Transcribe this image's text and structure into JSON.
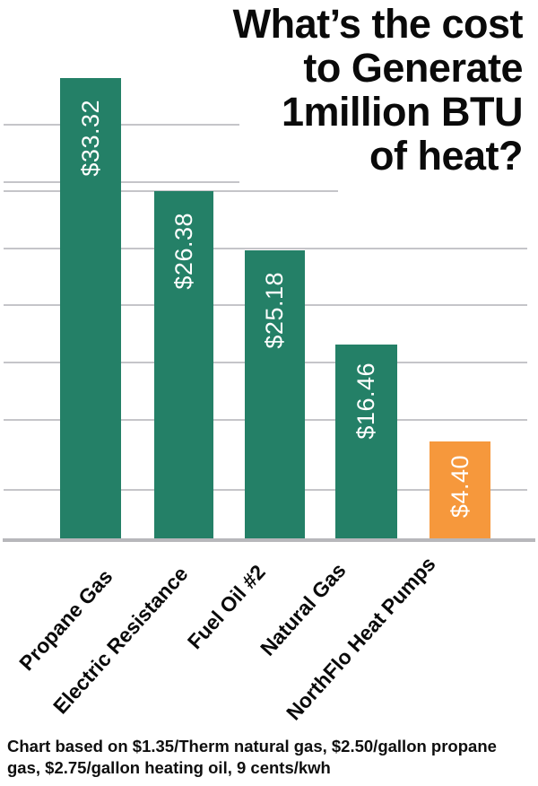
{
  "title": {
    "lines": [
      "What’s the cost",
      "to Generate",
      "1million BTU",
      "of heat?"
    ]
  },
  "chart_data": {
    "type": "bar",
    "title": "What’s the cost to Generate 1million BTU of heat?",
    "categories": [
      "Propane Gas",
      "Electric Resistance",
      "Fuel Oil #2",
      "Natural Gas",
      "NorthFlo Heat Pumps"
    ],
    "values": [
      33.32,
      26.38,
      25.18,
      16.46,
      4.4
    ],
    "value_labels": [
      "$33.32",
      "$26.38",
      "$25.18",
      "$16.46",
      "$4.40"
    ],
    "bar_colors": [
      "#248067",
      "#248067",
      "#248067",
      "#248067",
      "#F6983C"
    ],
    "value_label_color": "#ffffff",
    "xlabel": "",
    "ylabel": "",
    "axis_tick_labels": "none",
    "grid": "horizontal unlabeled gridlines",
    "legend_position": "none"
  },
  "footnote": {
    "lines": [
      "Chart based on $1.35/Therm natural gas, $2.50/gallon propane",
      "gas, $2.75/gallon heating oil, 9 cents/kwh"
    ]
  },
  "colors": {
    "bar_teal": "#248067",
    "bar_orange": "#F6983C",
    "gridline": "#c5c5c9",
    "axis_line": "#b7b7bb",
    "heading_text": "#0a0a0a",
    "value_text": "#ffffff"
  }
}
